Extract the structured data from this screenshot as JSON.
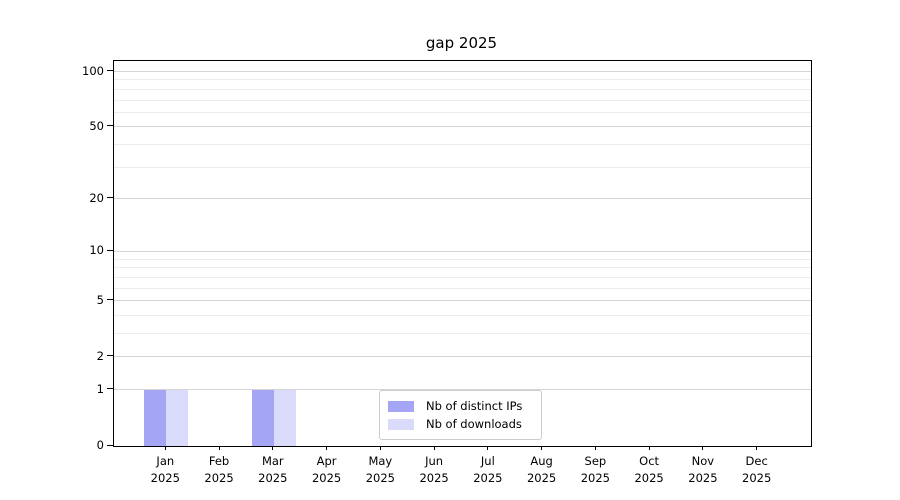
{
  "chart_data": {
    "type": "bar",
    "title": "gap 2025",
    "categories": [
      "Jan",
      "Feb",
      "Mar",
      "Apr",
      "May",
      "Jun",
      "Jul",
      "Aug",
      "Sep",
      "Oct",
      "Nov",
      "Dec"
    ],
    "x_year_label": "2025",
    "series": [
      {
        "name": "Nb of distinct IPs",
        "color": "#a5a5f5",
        "values": [
          1,
          0,
          1,
          0,
          0,
          0,
          0,
          0,
          0,
          0,
          0,
          0
        ]
      },
      {
        "name": "Nb of downloads",
        "color": "#dadafa",
        "values": [
          1,
          0,
          1,
          0,
          0,
          0,
          0,
          0,
          0,
          0,
          0,
          0
        ]
      }
    ],
    "yscale": "log1p",
    "ylim": [
      0,
      114
    ],
    "yticks": [
      0,
      1,
      2,
      5,
      10,
      20,
      50,
      100
    ],
    "yticks_minor": [
      3,
      4,
      6,
      7,
      8,
      9,
      30,
      40,
      60,
      70,
      80,
      90
    ],
    "grid": "horizontal",
    "grid_major_color": "#d5d5d5",
    "grid_minor_color": "#ececec",
    "legend_position": "lower center",
    "xlabel": "",
    "ylabel": ""
  }
}
